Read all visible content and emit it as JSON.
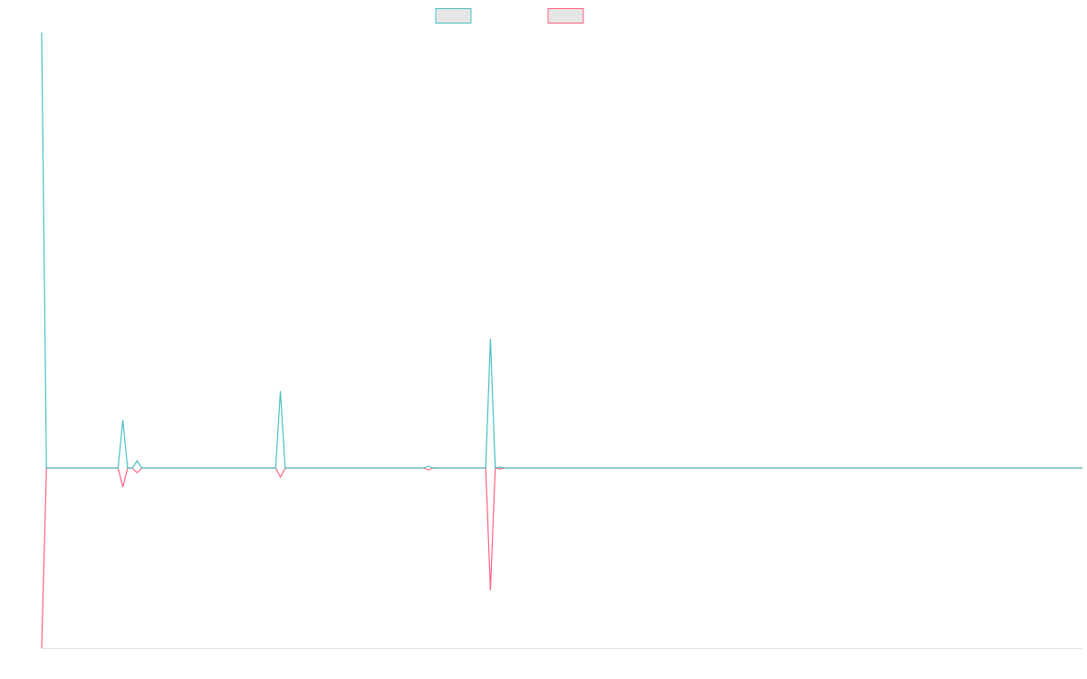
{
  "chart_data": {
    "type": "line",
    "x": [
      0,
      1,
      16,
      17,
      18,
      19,
      20,
      21,
      49,
      50,
      51,
      80,
      81,
      82,
      93,
      94,
      95,
      96,
      97,
      218
    ],
    "series": [
      {
        "color": "#ff6384",
        "values": [
          -199,
          0,
          0,
          -21,
          0,
          0,
          -5,
          0,
          0,
          -10,
          0,
          0,
          -2,
          0,
          0,
          -135,
          0,
          -1,
          0,
          0
        ]
      },
      {
        "color": "#4bc0c0",
        "values": [
          481,
          0,
          0,
          53,
          0,
          0,
          8,
          0,
          0,
          85,
          0,
          0,
          2,
          0,
          0,
          143,
          0,
          1,
          0,
          0
        ]
      }
    ],
    "xlim": [
      0,
      218
    ],
    "ylim": [
      -199,
      481
    ],
    "legend": "top"
  }
}
